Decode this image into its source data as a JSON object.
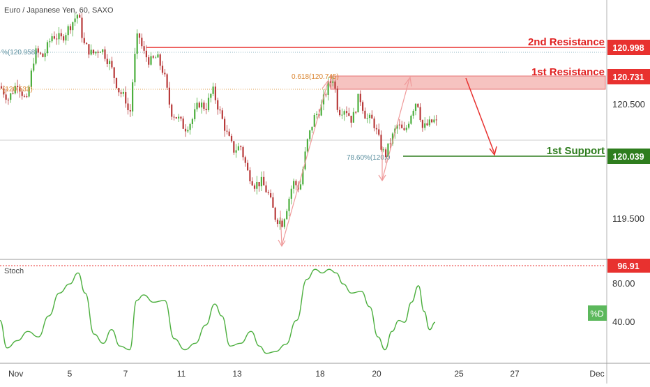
{
  "header": {
    "symbol_title": "Euro / Japanese Yen, 60, SAXO"
  },
  "colors": {
    "resistance": "#e8312f",
    "support": "#2e7d1e",
    "zone": "#f4b8b5",
    "bull": "#4caf3e",
    "bear": "#b83a3a",
    "osc": "#4caf3e",
    "fib_orange": "#d9822b",
    "fib_teal": "#5b8f9f"
  },
  "levels": {
    "second_resistance": {
      "label": "2nd Resistance",
      "price": "120.998"
    },
    "first_resistance": {
      "label": "1st Resistance",
      "price": "120.731"
    },
    "first_support": {
      "label": "1st Support",
      "price": "120.039"
    }
  },
  "fib_labels": {
    "fib_1": "%(120.958)",
    "fib_2": "(120.533)",
    "fib_3": "0.618(120.745)",
    "fib_4": "78.60%(120.0"
  },
  "price_axis": {
    "ticks": [
      "120.500",
      "119.500"
    ]
  },
  "date_axis": {
    "ticks": [
      "Nov",
      "5",
      "7",
      "11",
      "13",
      "18",
      "20",
      "25",
      "27",
      "Dec"
    ]
  },
  "oscillator": {
    "name": "Stoch",
    "level_label": "96.91",
    "ticks": [
      "80.00",
      "40.00"
    ],
    "series_badge": "%D"
  },
  "chart_data": {
    "type": "candlestick",
    "title": "Euro / Japanese Yen, 60, SAXO",
    "ylim": [
      119.26,
      121.17
    ],
    "horizontal_levels": [
      {
        "name": "2nd Resistance",
        "value": 120.998
      },
      {
        "name": "1st Resistance",
        "value": 120.731
      },
      {
        "name": "1st Support",
        "value": 120.039
      }
    ],
    "price_path": [
      [
        0,
        120.55
      ],
      [
        12,
        120.45
      ],
      [
        25,
        120.58
      ],
      [
        38,
        120.42
      ],
      [
        50,
        120.82
      ],
      [
        62,
        120.78
      ],
      [
        75,
        120.95
      ],
      [
        88,
        120.92
      ],
      [
        100,
        121.02
      ],
      [
        112,
        121.12
      ],
      [
        120,
        120.88
      ],
      [
        132,
        120.8
      ],
      [
        145,
        120.85
      ],
      [
        158,
        120.72
      ],
      [
        170,
        120.52
      ],
      [
        180,
        120.45
      ],
      [
        186,
        120.3
      ],
      [
        192,
        120.72
      ],
      [
        198,
        120.98
      ],
      [
        205,
        120.82
      ],
      [
        215,
        120.74
      ],
      [
        225,
        120.78
      ],
      [
        235,
        120.65
      ],
      [
        245,
        120.35
      ],
      [
        255,
        120.3
      ],
      [
        265,
        120.22
      ],
      [
        275,
        120.28
      ],
      [
        285,
        120.42
      ],
      [
        295,
        120.38
      ],
      [
        305,
        120.52
      ],
      [
        315,
        120.35
      ],
      [
        325,
        120.18
      ],
      [
        335,
        120.05
      ],
      [
        345,
        120.08
      ],
      [
        355,
        119.88
      ],
      [
        365,
        119.78
      ],
      [
        375,
        119.8
      ],
      [
        385,
        119.7
      ],
      [
        395,
        119.52
      ],
      [
        405,
        119.48
      ],
      [
        412,
        119.62
      ],
      [
        420,
        119.8
      ],
      [
        430,
        119.75
      ],
      [
        440,
        120.1
      ],
      [
        450,
        120.3
      ],
      [
        460,
        120.38
      ],
      [
        470,
        120.55
      ],
      [
        478,
        120.62
      ],
      [
        485,
        120.35
      ],
      [
        495,
        120.38
      ],
      [
        505,
        120.28
      ],
      [
        515,
        120.48
      ],
      [
        525,
        120.3
      ],
      [
        535,
        120.28
      ],
      [
        545,
        120.1
      ],
      [
        552,
        120.0
      ],
      [
        560,
        120.12
      ],
      [
        570,
        120.25
      ],
      [
        580,
        120.18
      ],
      [
        590,
        120.35
      ],
      [
        598,
        120.45
      ],
      [
        606,
        120.22
      ],
      [
        614,
        120.25
      ],
      [
        622,
        120.28
      ],
      [
        626,
        120.26
      ]
    ],
    "oscillator": {
      "name": "Stoch",
      "ylim": [
        0,
        100
      ],
      "values": [
        [
          0,
          40
        ],
        [
          10,
          10
        ],
        [
          25,
          18
        ],
        [
          40,
          28
        ],
        [
          55,
          22
        ],
        [
          70,
          45
        ],
        [
          85,
          70
        ],
        [
          100,
          80
        ],
        [
          112,
          92
        ],
        [
          122,
          70
        ],
        [
          135,
          25
        ],
        [
          148,
          15
        ],
        [
          160,
          30
        ],
        [
          172,
          12
        ],
        [
          186,
          8
        ],
        [
          196,
          62
        ],
        [
          206,
          68
        ],
        [
          220,
          60
        ],
        [
          236,
          62
        ],
        [
          250,
          20
        ],
        [
          265,
          8
        ],
        [
          280,
          15
        ],
        [
          295,
          35
        ],
        [
          308,
          58
        ],
        [
          318,
          45
        ],
        [
          330,
          12
        ],
        [
          345,
          15
        ],
        [
          360,
          28
        ],
        [
          372,
          12
        ],
        [
          382,
          4
        ],
        [
          395,
          6
        ],
        [
          410,
          14
        ],
        [
          425,
          40
        ],
        [
          440,
          85
        ],
        [
          452,
          96
        ],
        [
          462,
          92
        ],
        [
          472,
          96
        ],
        [
          482,
          92
        ],
        [
          492,
          80
        ],
        [
          504,
          70
        ],
        [
          518,
          72
        ],
        [
          530,
          55
        ],
        [
          542,
          22
        ],
        [
          552,
          8
        ],
        [
          562,
          28
        ],
        [
          572,
          40
        ],
        [
          580,
          38
        ],
        [
          590,
          60
        ],
        [
          600,
          78
        ],
        [
          608,
          50
        ],
        [
          616,
          30
        ],
        [
          624,
          38
        ]
      ]
    }
  }
}
